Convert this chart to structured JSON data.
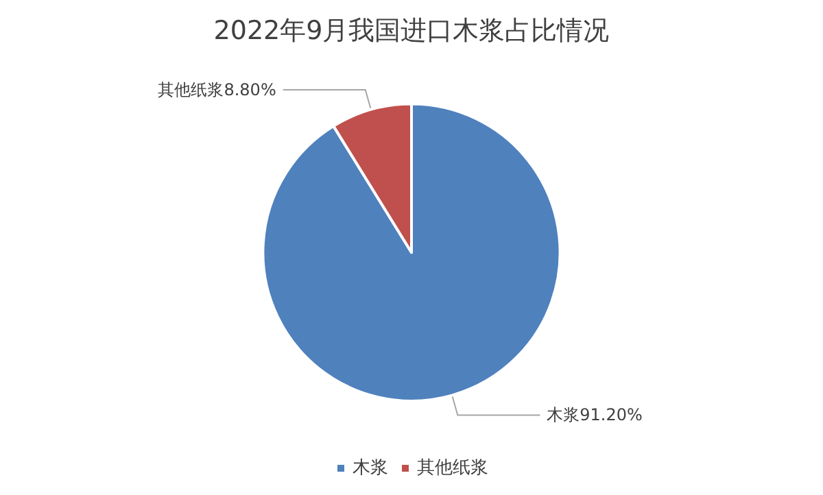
{
  "chart_data": {
    "type": "pie",
    "title": "2022年9月我国进口木浆占比情况",
    "categories": [
      "木浆",
      "其他纸浆"
    ],
    "values": [
      91.2,
      8.8
    ],
    "colors": [
      "#4f81bd",
      "#c0504d"
    ],
    "value_labels": [
      "91.20%",
      "8.80%"
    ],
    "legend": "bottom"
  }
}
